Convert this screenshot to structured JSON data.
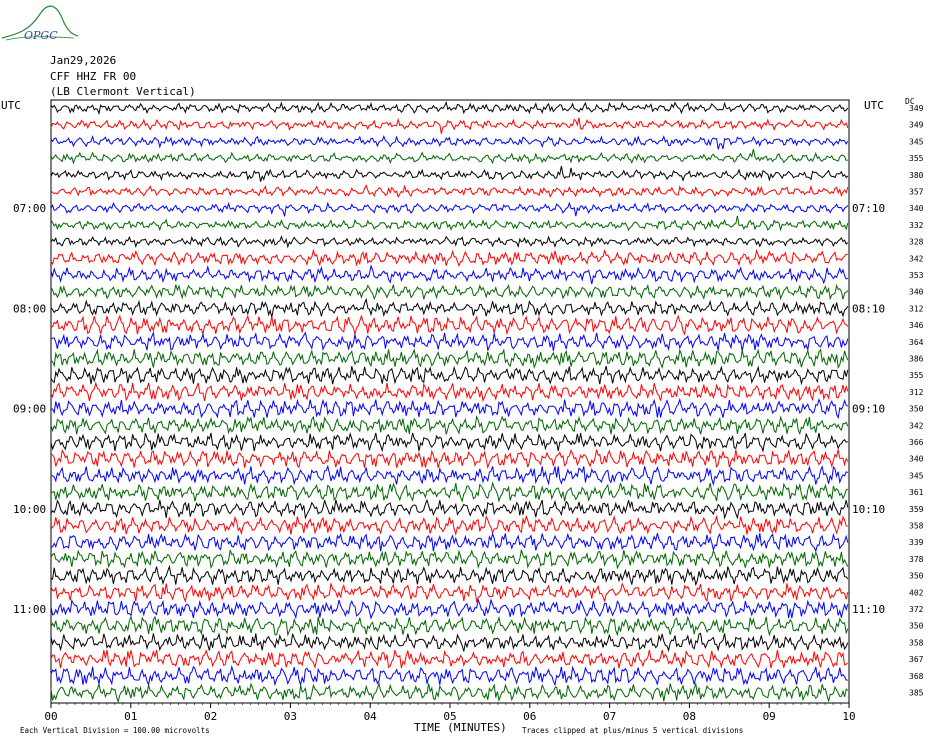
{
  "logo": {
    "text": "OPGC"
  },
  "header": {
    "date": "Jan29,2026",
    "station": "CFF HHZ FR 00",
    "location": "(LB  Clermont Vertical)"
  },
  "utc_left": "UTC",
  "utc_right": "UTC",
  "dc_header": "DC",
  "footer": {
    "x_axis_label": "TIME (MINUTES)",
    "scale_note": "Each Vertical Division =  100.00 microvolts",
    "clip_note": "Traces clipped at plus/minus 5 vertical divisions"
  },
  "colors": {
    "trace_cycle": [
      "#000000",
      "#ff0000",
      "#0000ff",
      "#006600"
    ],
    "logo": "#2a8a3a"
  },
  "chart_data": {
    "type": "line",
    "title": "",
    "xlabel": "TIME (MINUTES)",
    "xlim": [
      0,
      10
    ],
    "x_ticks": [
      "00",
      "01",
      "02",
      "03",
      "04",
      "05",
      "06",
      "07",
      "08",
      "09",
      "10"
    ],
    "left_hour_labels": [
      {
        "row": 6,
        "text": "07:00"
      },
      {
        "row": 12,
        "text": "08:00"
      },
      {
        "row": 18,
        "text": "09:00"
      },
      {
        "row": 24,
        "text": "10:00"
      },
      {
        "row": 30,
        "text": "11:00"
      }
    ],
    "right_hour_labels": [
      {
        "row": 6,
        "text": "07:10"
      },
      {
        "row": 12,
        "text": "08:10"
      },
      {
        "row": 18,
        "text": "09:10"
      },
      {
        "row": 24,
        "text": "10:10"
      },
      {
        "row": 30,
        "text": "11:10"
      }
    ],
    "trace_count": 36,
    "dc_offsets": [
      349,
      349,
      345,
      355,
      380,
      357,
      340,
      332,
      328,
      342,
      353,
      340,
      312,
      346,
      364,
      386,
      355,
      312,
      350,
      342,
      366,
      340,
      345,
      361,
      359,
      358,
      339,
      378,
      350,
      402,
      372,
      350,
      358,
      367,
      368,
      385
    ],
    "series_note": "Seismic helicorder traces, 10 minutes per line"
  }
}
